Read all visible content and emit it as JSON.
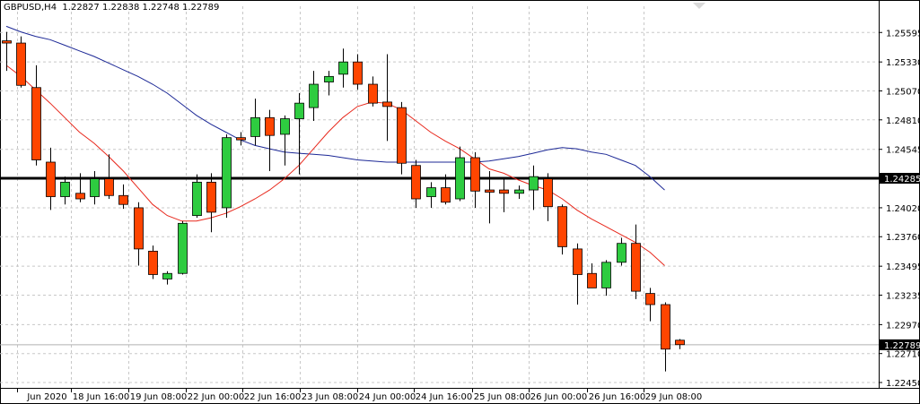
{
  "window": {
    "symbol_line": "GBPUSD,H4  1.22827 1.22838 1.22748 1.22789"
  },
  "colors": {
    "background": "#ffffff",
    "grid": "#c8c8c8",
    "bull": "#2ecc40",
    "bear": "#ff4500",
    "outline": "#000000",
    "ma_fast": "#e8281c",
    "ma_slow": "#1c2896",
    "hline": "#000000",
    "current_line": "#b0b0b0"
  },
  "chart_data": {
    "type": "candlestick",
    "title": "GBPUSD,H4",
    "ylim": [
      1.2245,
      1.2575
    ],
    "y_ticks": [
      "1.25595",
      "1.25330",
      "1.25070",
      "1.24810",
      "1.24545",
      "1.24285",
      "1.24020",
      "1.23760",
      "1.23495",
      "1.23235",
      "1.22970",
      "1.22710",
      "1.22450"
    ],
    "x_ticks": [
      "Jun 2020",
      "18 Jun 16:00",
      "19 Jun 08:00",
      "22 Jun 00:00",
      "22 Jun 16:00",
      "23 Jun 08:00",
      "24 Jun 00:00",
      "24 Jun 16:00",
      "25 Jun 08:00",
      "26 Jun 00:00",
      "26 Jun 16:00",
      "29 Jun 08:00"
    ],
    "candles": [
      {
        "o": 1.2552,
        "h": 1.256,
        "l": 1.2525,
        "c": 1.255
      },
      {
        "o": 1.255,
        "h": 1.2556,
        "l": 1.251,
        "c": 1.2512
      },
      {
        "o": 1.251,
        "h": 1.253,
        "l": 1.244,
        "c": 1.2445
      },
      {
        "o": 1.2443,
        "h": 1.2456,
        "l": 1.24,
        "c": 1.2412
      },
      {
        "o": 1.2412,
        "h": 1.243,
        "l": 1.2405,
        "c": 1.2425
      },
      {
        "o": 1.2415,
        "h": 1.2433,
        "l": 1.2407,
        "c": 1.241
      },
      {
        "o": 1.2412,
        "h": 1.2435,
        "l": 1.2405,
        "c": 1.2428
      },
      {
        "o": 1.2428,
        "h": 1.245,
        "l": 1.241,
        "c": 1.2413
      },
      {
        "o": 1.2413,
        "h": 1.2423,
        "l": 1.2401,
        "c": 1.2405
      },
      {
        "o": 1.2402,
        "h": 1.2407,
        "l": 1.235,
        "c": 1.2365
      },
      {
        "o": 1.2363,
        "h": 1.2368,
        "l": 1.2338,
        "c": 1.2342
      },
      {
        "o": 1.2338,
        "h": 1.2345,
        "l": 1.2333,
        "c": 1.2343
      },
      {
        "o": 1.2343,
        "h": 1.239,
        "l": 1.2342,
        "c": 1.2388
      },
      {
        "o": 1.2395,
        "h": 1.2432,
        "l": 1.2393,
        "c": 1.2425
      },
      {
        "o": 1.2425,
        "h": 1.2433,
        "l": 1.238,
        "c": 1.2398
      },
      {
        "o": 1.2402,
        "h": 1.2468,
        "l": 1.2393,
        "c": 1.2465
      },
      {
        "o": 1.2465,
        "h": 1.247,
        "l": 1.2458,
        "c": 1.2463
      },
      {
        "o": 1.2466,
        "h": 1.25,
        "l": 1.2458,
        "c": 1.2483
      },
      {
        "o": 1.2483,
        "h": 1.249,
        "l": 1.2435,
        "c": 1.2467
      },
      {
        "o": 1.2468,
        "h": 1.2485,
        "l": 1.244,
        "c": 1.2482
      },
      {
        "o": 1.2482,
        "h": 1.2505,
        "l": 1.2432,
        "c": 1.2496
      },
      {
        "o": 1.2492,
        "h": 1.2525,
        "l": 1.248,
        "c": 1.2513
      },
      {
        "o": 1.2515,
        "h": 1.2525,
        "l": 1.2503,
        "c": 1.252
      },
      {
        "o": 1.2522,
        "h": 1.2545,
        "l": 1.251,
        "c": 1.2533
      },
      {
        "o": 1.2533,
        "h": 1.254,
        "l": 1.2508,
        "c": 1.2513
      },
      {
        "o": 1.2513,
        "h": 1.252,
        "l": 1.2493,
        "c": 1.2496
      },
      {
        "o": 1.2497,
        "h": 1.254,
        "l": 1.2462,
        "c": 1.2493
      },
      {
        "o": 1.2492,
        "h": 1.2497,
        "l": 1.2432,
        "c": 1.2442
      },
      {
        "o": 1.244,
        "h": 1.2445,
        "l": 1.2402,
        "c": 1.241
      },
      {
        "o": 1.2412,
        "h": 1.2425,
        "l": 1.2402,
        "c": 1.242
      },
      {
        "o": 1.242,
        "h": 1.2432,
        "l": 1.2405,
        "c": 1.2407
      },
      {
        "o": 1.241,
        "h": 1.2457,
        "l": 1.2408,
        "c": 1.2447
      },
      {
        "o": 1.2447,
        "h": 1.2452,
        "l": 1.2402,
        "c": 1.2417
      },
      {
        "o": 1.2418,
        "h": 1.2435,
        "l": 1.2388,
        "c": 1.2416
      },
      {
        "o": 1.2418,
        "h": 1.2428,
        "l": 1.2398,
        "c": 1.2415
      },
      {
        "o": 1.2415,
        "h": 1.2422,
        "l": 1.241,
        "c": 1.2418
      },
      {
        "o": 1.2418,
        "h": 1.244,
        "l": 1.24,
        "c": 1.243
      },
      {
        "o": 1.2428,
        "h": 1.2433,
        "l": 1.239,
        "c": 1.2403
      },
      {
        "o": 1.2403,
        "h": 1.2405,
        "l": 1.236,
        "c": 1.2367
      },
      {
        "o": 1.2365,
        "h": 1.237,
        "l": 1.2315,
        "c": 1.2342
      },
      {
        "o": 1.2343,
        "h": 1.2352,
        "l": 1.233,
        "c": 1.233
      },
      {
        "o": 1.233,
        "h": 1.2355,
        "l": 1.2323,
        "c": 1.2353
      },
      {
        "o": 1.2353,
        "h": 1.2375,
        "l": 1.235,
        "c": 1.237
      },
      {
        "o": 1.237,
        "h": 1.2387,
        "l": 1.232,
        "c": 1.2327
      },
      {
        "o": 1.2325,
        "h": 1.233,
        "l": 1.23,
        "c": 1.2315
      },
      {
        "o": 1.2315,
        "h": 1.2317,
        "l": 1.2255,
        "c": 1.2275
      },
      {
        "o": 1.2283,
        "h": 1.2284,
        "l": 1.2275,
        "c": 1.2279
      }
    ],
    "ma_fast": [
      1.253,
      1.252,
      1.2508,
      1.2496,
      1.2483,
      1.247,
      1.246,
      1.2448,
      1.2435,
      1.242,
      1.2405,
      1.2395,
      1.239,
      1.239,
      1.2393,
      1.2397,
      1.2403,
      1.241,
      1.2418,
      1.2428,
      1.244,
      1.2455,
      1.247,
      1.2483,
      1.2493,
      1.2497,
      1.2496,
      1.249,
      1.248,
      1.247,
      1.2462,
      1.2455,
      1.2446,
      1.2437,
      1.2433,
      1.2427,
      1.2422,
      1.2418,
      1.241,
      1.24,
      1.2392,
      1.2385,
      1.2378,
      1.2371,
      1.2362,
      1.235
    ],
    "ma_slow": [
      1.2565,
      1.256,
      1.2556,
      1.2553,
      1.2548,
      1.2543,
      1.2538,
      1.2532,
      1.2526,
      1.252,
      1.2513,
      1.2505,
      1.2495,
      1.2485,
      1.2477,
      1.247,
      1.2463,
      1.2458,
      1.2455,
      1.2452,
      1.2451,
      1.245,
      1.2449,
      1.2447,
      1.2445,
      1.2444,
      1.2443,
      1.2443,
      1.2443,
      1.2443,
      1.2443,
      1.2443,
      1.2443,
      1.2444,
      1.2446,
      1.2448,
      1.2451,
      1.2454,
      1.2456,
      1.2455,
      1.2452,
      1.245,
      1.2445,
      1.244,
      1.243,
      1.2418
    ],
    "hline": {
      "value": 1.24285,
      "label": "1.24285"
    },
    "current": {
      "value": 1.22789,
      "label": "1.22789"
    },
    "grid": true
  }
}
